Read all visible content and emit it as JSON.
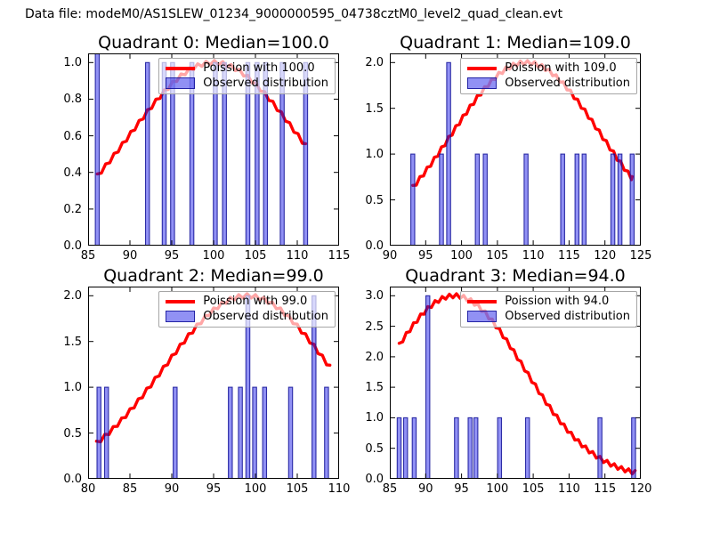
{
  "header": {
    "datafile": "Data file: modeM0/AS1SLEW_01234_9000000595_04738cztM0_level2_quad_clean.evt"
  },
  "colors": {
    "curve": "#ff0000",
    "bar_fill": "rgba(22,22,232,0.47)",
    "bar_edge": "rgba(16,16,150,0.85)",
    "axis": "#000000",
    "legend_border": "#a6a6a6"
  },
  "chart_data": [
    {
      "type": "bar",
      "subtype": "histogram-with-poisson-curve",
      "title": "Quadrant 0: Median=100.0",
      "median": 100.0,
      "legend": [
        "Poission with 100.0",
        "Observed distribution"
      ],
      "poisson_lambda": 100.0,
      "curve_peak": 1.0,
      "curve_x_range": [
        86.1,
        111.0
      ],
      "xlim": [
        85,
        115
      ],
      "ylim": [
        0,
        1.05
      ],
      "xticks": [
        85,
        90,
        95,
        100,
        105,
        110,
        115
      ],
      "yticks": [
        "0.0",
        "0.2",
        "0.4",
        "0.6",
        "0.8",
        "1.0"
      ],
      "bars": [
        [
          86.1,
          2
        ],
        [
          92.1,
          1
        ],
        [
          94.1,
          1
        ],
        [
          95.1,
          1
        ],
        [
          97.4,
          1
        ],
        [
          100.2,
          1
        ],
        [
          101.3,
          1
        ],
        [
          104.1,
          1
        ],
        [
          105.2,
          1
        ],
        [
          106.2,
          1
        ],
        [
          108.2,
          1
        ],
        [
          111.0,
          1
        ]
      ]
    },
    {
      "type": "bar",
      "subtype": "histogram-with-poisson-curve",
      "title": "Quadrant 1: Median=109.0",
      "median": 109.0,
      "legend": [
        "Poission with 109.0",
        "Observed distribution"
      ],
      "poisson_lambda": 109.0,
      "curve_peak": 2.0,
      "curve_x_range": [
        93.2,
        123.8
      ],
      "xlim": [
        90,
        125
      ],
      "ylim": [
        0,
        2.1
      ],
      "xticks": [
        90,
        95,
        100,
        105,
        110,
        115,
        120,
        125
      ],
      "yticks": [
        "0.0",
        "0.5",
        "1.0",
        "1.5",
        "2.0"
      ],
      "bars": [
        [
          93.2,
          1
        ],
        [
          97.2,
          1
        ],
        [
          98.2,
          2
        ],
        [
          102.2,
          1
        ],
        [
          103.3,
          1
        ],
        [
          109.0,
          1
        ],
        [
          114.1,
          1
        ],
        [
          116.1,
          1
        ],
        [
          117.1,
          1
        ],
        [
          121.1,
          1
        ],
        [
          122.1,
          1
        ],
        [
          123.8,
          1
        ]
      ]
    },
    {
      "type": "bar",
      "subtype": "histogram-with-poisson-curve",
      "title": "Quadrant 2: Median=99.0",
      "median": 99.0,
      "legend": [
        "Poission with 99.0",
        "Observed distribution"
      ],
      "poisson_lambda": 99.0,
      "curve_peak": 2.0,
      "curve_x_range": [
        81.0,
        108.9
      ],
      "xlim": [
        80,
        110
      ],
      "ylim": [
        0,
        2.1
      ],
      "xticks": [
        80,
        85,
        90,
        95,
        100,
        105,
        110
      ],
      "yticks": [
        "0.0",
        "0.5",
        "1.0",
        "1.5",
        "2.0"
      ],
      "bars": [
        [
          81.3,
          1
        ],
        [
          82.2,
          1
        ],
        [
          90.4,
          1
        ],
        [
          97.0,
          1
        ],
        [
          98.2,
          1
        ],
        [
          99.1,
          2
        ],
        [
          99.9,
          1
        ],
        [
          101.1,
          1
        ],
        [
          104.2,
          1
        ],
        [
          107.0,
          2
        ],
        [
          108.5,
          1
        ]
      ]
    },
    {
      "type": "bar",
      "subtype": "histogram-with-poisson-curve",
      "title": "Quadrant 3: Median=94.0",
      "median": 94.0,
      "legend": [
        "Poission with 94.0",
        "Observed distribution"
      ],
      "poisson_lambda": 94.0,
      "curve_peak": 3.0,
      "curve_x_range": [
        86.3,
        119.2
      ],
      "xlim": [
        85,
        120
      ],
      "ylim": [
        0,
        3.15
      ],
      "xticks": [
        85,
        90,
        95,
        100,
        105,
        110,
        115,
        120
      ],
      "yticks": [
        "0.0",
        "0.5",
        "1.0",
        "1.5",
        "2.0",
        "2.5",
        "3.0"
      ],
      "bars": [
        [
          86.3,
          1
        ],
        [
          87.2,
          1
        ],
        [
          88.4,
          1
        ],
        [
          90.3,
          3
        ],
        [
          94.3,
          1
        ],
        [
          96.2,
          1
        ],
        [
          97.0,
          1
        ],
        [
          100.3,
          1
        ],
        [
          104.2,
          1
        ],
        [
          114.3,
          1
        ],
        [
          119.0,
          1
        ]
      ]
    }
  ]
}
